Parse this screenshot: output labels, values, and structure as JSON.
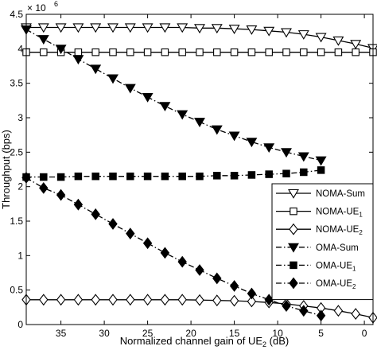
{
  "chart_data": {
    "type": "line",
    "title": "",
    "xlabel_main": "Normalized channel gain of UE",
    "xlabel_sub": "2",
    "xlabel_tail": " (dB)",
    "ylabel": "Throughput (bps)",
    "y_exponent_base": "× 10",
    "y_exponent_power": "6",
    "xlim": [
      39,
      -1
    ],
    "ylim": [
      0,
      4.5
    ],
    "x_ticks": [
      35,
      30,
      25,
      20,
      15,
      10,
      5,
      0
    ],
    "y_ticks": [
      0,
      0.5,
      1,
      1.5,
      2,
      2.5,
      3,
      3.5,
      4,
      4.5
    ],
    "grid": false,
    "legend_position": "right",
    "series": [
      {
        "name": "NOMA-Sum",
        "name_main": "NOMA-Sum",
        "name_sub": "",
        "line_style": "solid",
        "marker": "triangle-down-open",
        "x": [
          39,
          37,
          35,
          33,
          31,
          29,
          27,
          25,
          23,
          21,
          19,
          17,
          15,
          13,
          11,
          9,
          7,
          5,
          3,
          1,
          -1
        ],
        "y": [
          4.31,
          4.31,
          4.31,
          4.31,
          4.31,
          4.31,
          4.31,
          4.31,
          4.31,
          4.31,
          4.3,
          4.3,
          4.29,
          4.28,
          4.26,
          4.24,
          4.21,
          4.17,
          4.12,
          4.07,
          4.01
        ]
      },
      {
        "name": "NOMA-UE1",
        "name_main": "NOMA-UE",
        "name_sub": "1",
        "line_style": "solid",
        "marker": "square-open",
        "x": [
          39,
          37,
          35,
          33,
          31,
          29,
          27,
          25,
          23,
          21,
          19,
          17,
          15,
          13,
          11,
          9,
          7,
          5,
          3,
          1,
          -1
        ],
        "y": [
          3.95,
          3.95,
          3.95,
          3.95,
          3.95,
          3.95,
          3.95,
          3.95,
          3.95,
          3.95,
          3.95,
          3.95,
          3.95,
          3.95,
          3.95,
          3.95,
          3.95,
          3.95,
          3.95,
          3.95,
          3.95
        ]
      },
      {
        "name": "NOMA-UE2",
        "name_main": "NOMA-UE",
        "name_sub": "2",
        "line_style": "solid",
        "marker": "diamond-open",
        "x": [
          39,
          37,
          35,
          33,
          31,
          29,
          27,
          25,
          23,
          21,
          19,
          17,
          15,
          13,
          11,
          9,
          7,
          5,
          3,
          1,
          -1
        ],
        "y": [
          0.36,
          0.36,
          0.36,
          0.36,
          0.36,
          0.36,
          0.36,
          0.36,
          0.36,
          0.36,
          0.355,
          0.35,
          0.345,
          0.335,
          0.32,
          0.3,
          0.27,
          0.24,
          0.2,
          0.155,
          0.1
        ]
      },
      {
        "name": "OMA-Sum",
        "name_main": "OMA-Sum",
        "name_sub": "",
        "line_style": "dashdot",
        "marker": "triangle-down-filled",
        "x": [
          39,
          37,
          35,
          33,
          31,
          29,
          27,
          25,
          23,
          21,
          19,
          17,
          15,
          13,
          11,
          9,
          7,
          5
        ],
        "y": [
          4.28,
          4.14,
          4.0,
          3.85,
          3.71,
          3.57,
          3.43,
          3.3,
          3.17,
          3.05,
          2.94,
          2.83,
          2.74,
          2.65,
          2.57,
          2.5,
          2.44,
          2.38
        ]
      },
      {
        "name": "OMA-UE1",
        "name_main": "OMA-UE",
        "name_sub": "1",
        "line_style": "dashdot",
        "marker": "square-filled",
        "x": [
          39,
          37,
          35,
          33,
          31,
          29,
          27,
          25,
          23,
          21,
          19,
          17,
          15,
          13,
          11,
          9,
          7,
          5
        ],
        "y": [
          2.14,
          2.14,
          2.14,
          2.15,
          2.15,
          2.15,
          2.15,
          2.15,
          2.15,
          2.15,
          2.15,
          2.16,
          2.16,
          2.17,
          2.18,
          2.19,
          2.21,
          2.24
        ]
      },
      {
        "name": "OMA-UE2",
        "name_main": "OMA-UE",
        "name_sub": "2",
        "line_style": "dashdot",
        "marker": "diamond-filled",
        "x": [
          39,
          37,
          35,
          33,
          31,
          29,
          27,
          25,
          23,
          21,
          19,
          17,
          15,
          13,
          11,
          9,
          7,
          5
        ],
        "y": [
          2.13,
          1.98,
          1.88,
          1.74,
          1.6,
          1.46,
          1.32,
          1.18,
          1.04,
          0.91,
          0.79,
          0.67,
          0.56,
          0.45,
          0.36,
          0.27,
          0.2,
          0.13
        ]
      }
    ]
  }
}
